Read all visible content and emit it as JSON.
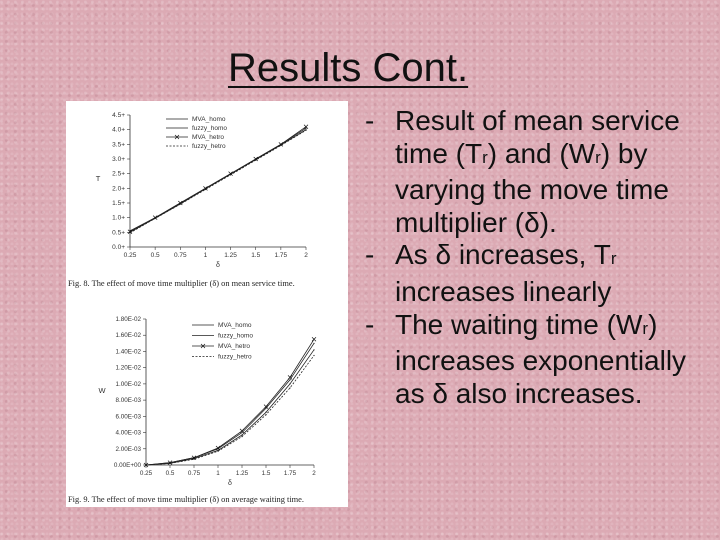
{
  "slide": {
    "title": "Results Cont."
  },
  "bullets": [
    {
      "dash": "-",
      "parts": [
        "Result of mean service time (T",
        "r",
        ") and (W",
        "r",
        ") by varying the move time multiplier (δ)."
      ]
    },
    {
      "dash": "-",
      "parts": [
        "As δ increases, T",
        "r",
        " increases linearly"
      ]
    },
    {
      "dash": "-",
      "parts": [
        "The waiting time (W",
        "r",
        ") increases exponentially as δ also increases."
      ]
    }
  ],
  "chart_data": [
    {
      "type": "line",
      "caption": "Fig. 8.  The effect of move time multiplier (δ) on mean service time.",
      "xlabel": "δ",
      "ylabel": "T",
      "x_ticks": [
        "0.25",
        "0.5",
        "0.75",
        "1",
        "1.25",
        "1.5",
        "1.75",
        "2"
      ],
      "y_ticks": [
        "0.0+",
        "0.5+",
        "1.0+",
        "1.5+",
        "2.0+",
        "2.5+",
        "3.0+",
        "3.5+",
        "4.0+",
        "4.5+"
      ],
      "xlim": [
        0.25,
        2
      ],
      "ylim": [
        0,
        4.5
      ],
      "legend_position": "top-left",
      "x": [
        0.25,
        0.5,
        0.75,
        1,
        1.25,
        1.5,
        1.75,
        2
      ],
      "series": [
        {
          "name": "MVA_homo",
          "style": "solid",
          "values": [
            0.55,
            1.0,
            1.5,
            2.0,
            2.5,
            3.0,
            3.5,
            4.05
          ]
        },
        {
          "name": "fuzzy_homo",
          "style": "solid",
          "values": [
            0.5,
            0.98,
            1.47,
            1.98,
            2.48,
            2.98,
            3.48,
            4.0
          ]
        },
        {
          "name": "MVA_hetro",
          "style": "solid-x",
          "values": [
            0.52,
            1.0,
            1.5,
            2.0,
            2.5,
            3.0,
            3.5,
            4.1
          ]
        },
        {
          "name": "fuzzy_hetro",
          "style": "dotted",
          "values": [
            0.48,
            0.97,
            1.46,
            1.96,
            2.46,
            2.96,
            3.46,
            3.98
          ]
        }
      ]
    },
    {
      "type": "line",
      "caption": "Fig. 9.  The effect of move time multiplier (δ) on average waiting time.",
      "xlabel": "δ",
      "ylabel": "W",
      "x_ticks": [
        "0.25",
        "0.5",
        "0.75",
        "1",
        "1.25",
        "1.5",
        "1.75",
        "2"
      ],
      "y_ticks": [
        "0.00E+00",
        "2.00E-03",
        "4.00E-03",
        "6.00E-03",
        "8.00E-03",
        "1.00E-02",
        "1.20E-02",
        "1.40E-02",
        "1.60E-02",
        "1.80E-02"
      ],
      "xlim": [
        0.25,
        2
      ],
      "ylim": [
        0,
        0.018
      ],
      "legend_position": "top-left",
      "x": [
        0.25,
        0.5,
        0.75,
        1,
        1.25,
        1.5,
        1.75,
        2
      ],
      "series": [
        {
          "name": "MVA_homo",
          "style": "solid",
          "values": [
            0.0,
            0.0003,
            0.0009,
            0.002,
            0.004,
            0.007,
            0.0105,
            0.015
          ]
        },
        {
          "name": "fuzzy_homo",
          "style": "solid",
          "values": [
            0.0,
            0.0002,
            0.0008,
            0.0018,
            0.0037,
            0.0065,
            0.01,
            0.0142
          ]
        },
        {
          "name": "MVA_hetro",
          "style": "solid-x",
          "values": [
            0.0,
            0.0003,
            0.0009,
            0.0021,
            0.0042,
            0.0072,
            0.0108,
            0.0155
          ]
        },
        {
          "name": "fuzzy_hetro",
          "style": "dotted",
          "values": [
            0.0,
            0.0002,
            0.0007,
            0.0017,
            0.0035,
            0.0062,
            0.0095,
            0.0135
          ]
        }
      ]
    }
  ]
}
